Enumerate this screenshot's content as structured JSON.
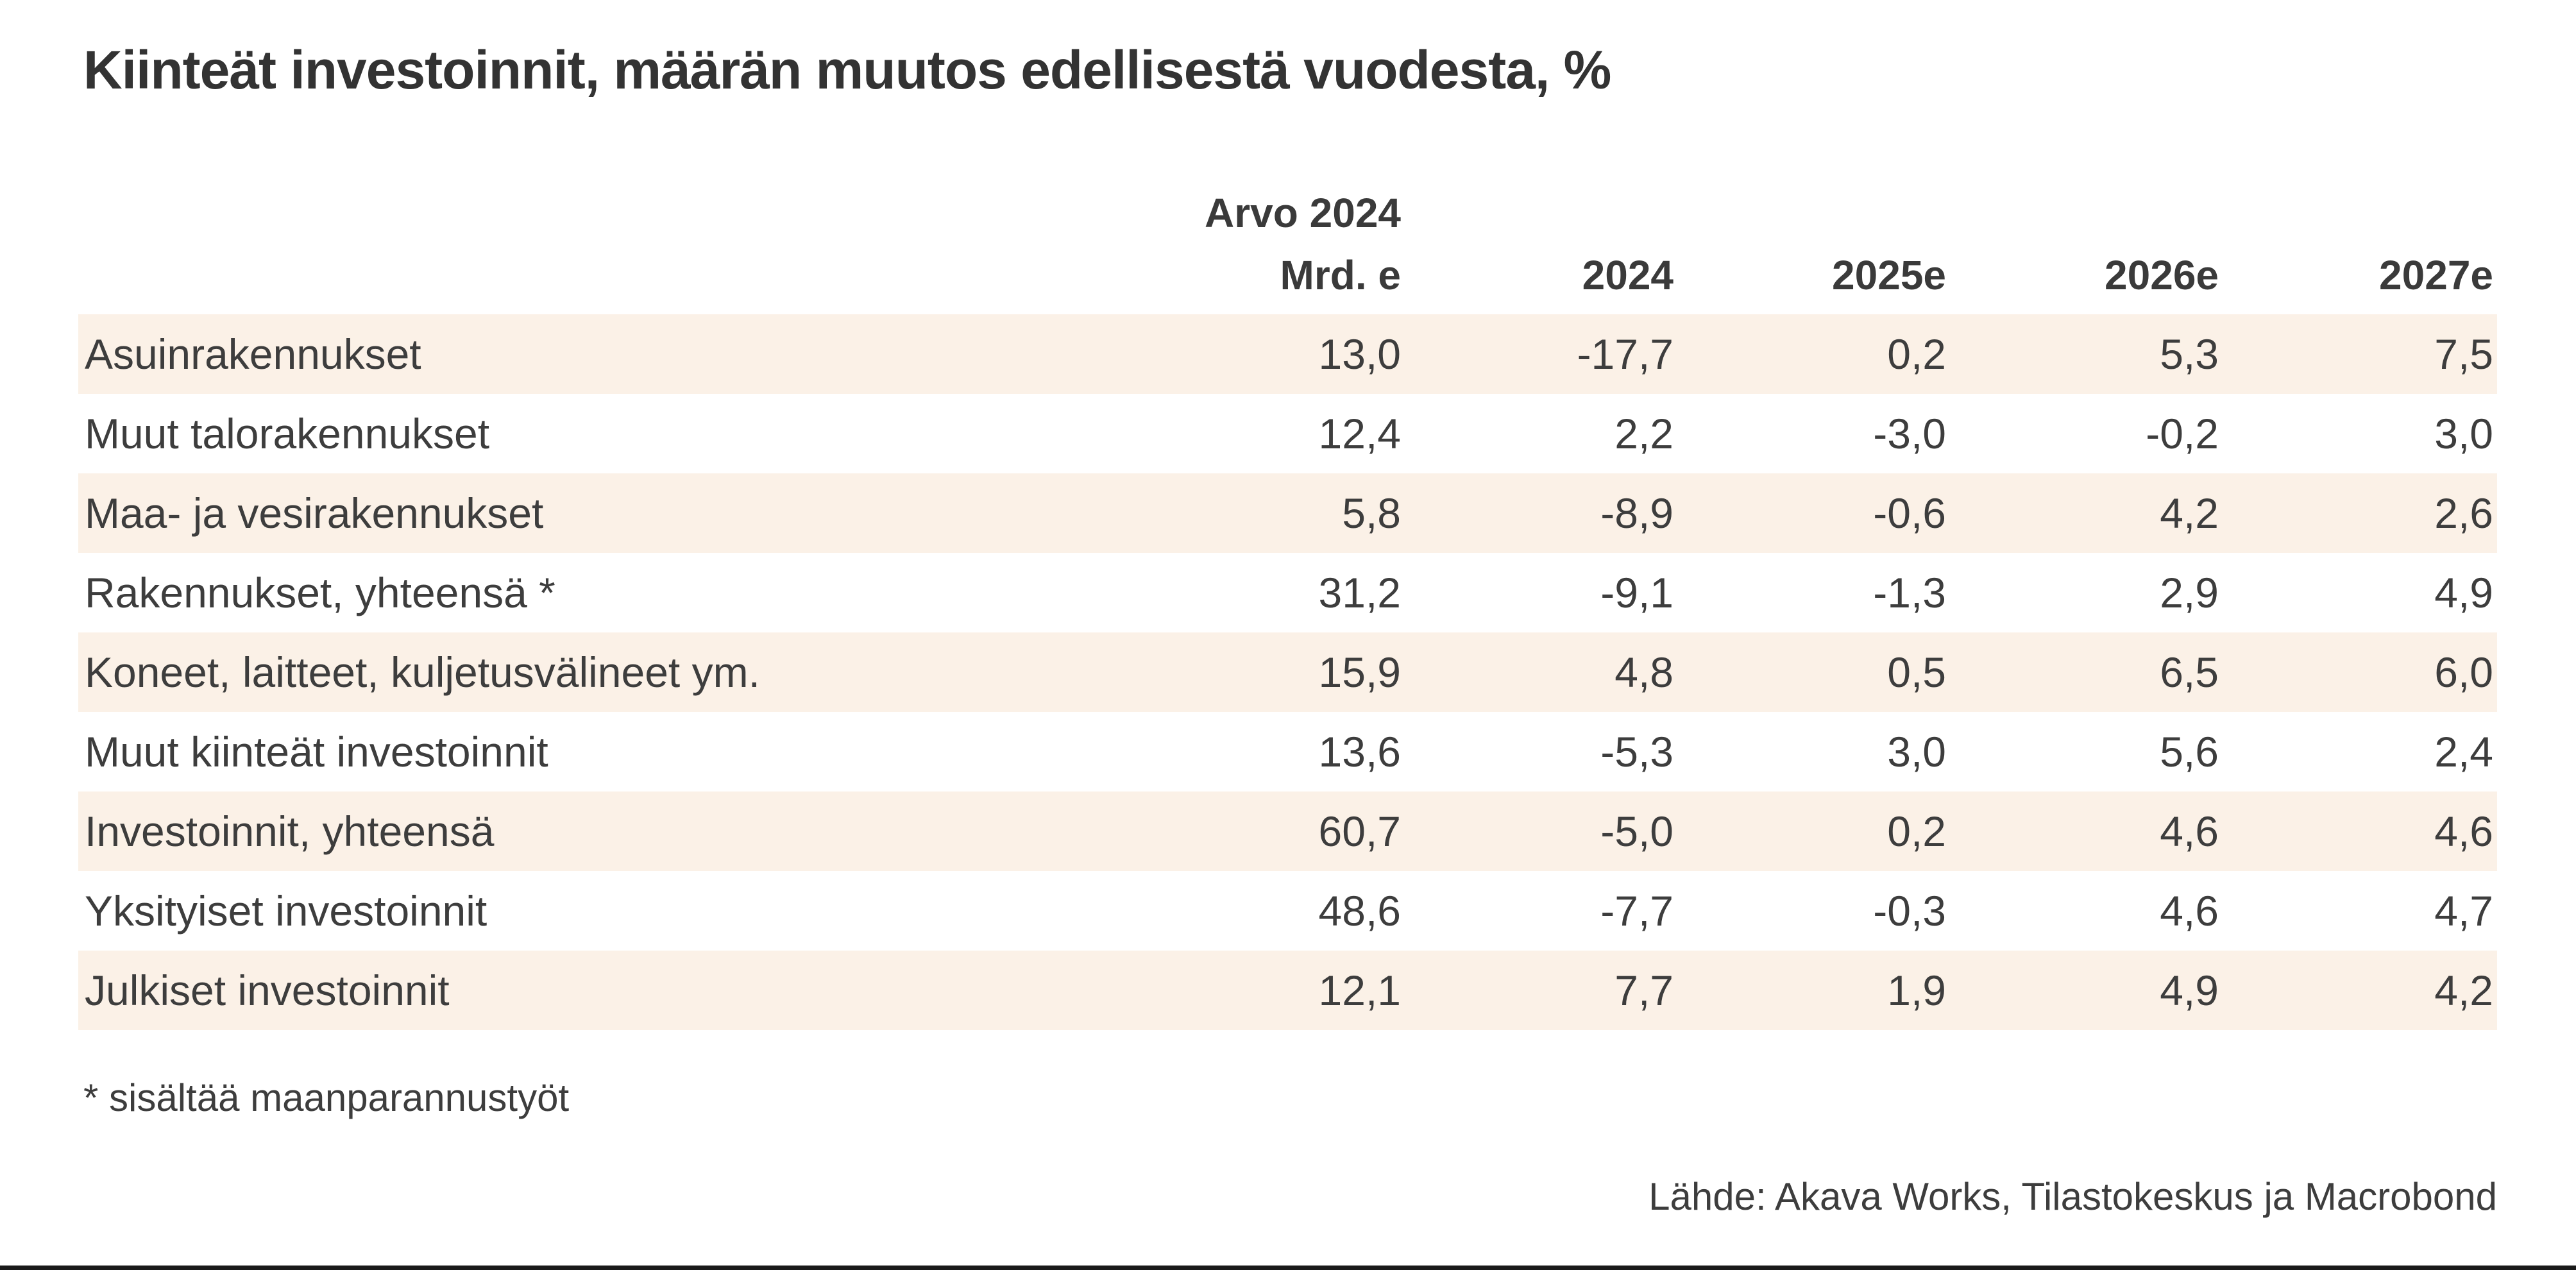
{
  "title": "Kiinteät investoinnit, määrän muutos edellisestä vuodesta, %",
  "table": {
    "header": {
      "value_col_line1": "Arvo 2024",
      "value_col_line2": "Mrd. e",
      "year_cols": [
        "2024",
        "2025e",
        "2026e",
        "2027e"
      ]
    },
    "rows": [
      {
        "label": "Asuinrakennukset",
        "values": [
          "13,0",
          "-17,7",
          "0,2",
          "5,3",
          "7,5"
        ]
      },
      {
        "label": "Muut talorakennukset",
        "values": [
          "12,4",
          "2,2",
          "-3,0",
          "-0,2",
          "3,0"
        ]
      },
      {
        "label": "Maa- ja vesirakennukset",
        "values": [
          "5,8",
          "-8,9",
          "-0,6",
          "4,2",
          "2,6"
        ]
      },
      {
        "label": "Rakennukset, yhteensä *",
        "values": [
          "31,2",
          "-9,1",
          "-1,3",
          "2,9",
          "4,9"
        ]
      },
      {
        "label": "Koneet, laitteet, kuljetusvälineet ym.",
        "values": [
          "15,9",
          "4,8",
          "0,5",
          "6,5",
          "6,0"
        ]
      },
      {
        "label": "Muut kiinteät investoinnit",
        "values": [
          "13,6",
          "-5,3",
          "3,0",
          "5,6",
          "2,4"
        ]
      },
      {
        "label": "Investoinnit, yhteensä",
        "values": [
          "60,7",
          "-5,0",
          "0,2",
          "4,6",
          "4,6"
        ]
      },
      {
        "label": "Yksityiset investoinnit",
        "values": [
          "48,6",
          "-7,7",
          "-0,3",
          "4,6",
          "4,7"
        ]
      },
      {
        "label": "Julkiset investoinnit",
        "values": [
          "12,1",
          "7,7",
          "1,9",
          "4,9",
          "4,2"
        ]
      }
    ]
  },
  "footnote": "* sisältää maanparannustyöt",
  "source": "Lähde: Akava Works, Tilastokeskus ja Macrobond",
  "colors": {
    "row_stripe": "#fbf1e7",
    "text": "#3d3d3d",
    "bottom_bar": "#1a1a1a"
  },
  "chart_data": {
    "type": "table",
    "title": "Kiinteät investoinnit, määrän muutos edellisestä vuodesta, %",
    "columns": [
      "",
      "Arvo 2024 Mrd. e",
      "2024",
      "2025e",
      "2026e",
      "2027e"
    ],
    "rows": [
      [
        "Asuinrakennukset",
        13.0,
        -17.7,
        0.2,
        5.3,
        7.5
      ],
      [
        "Muut talorakennukset",
        12.4,
        2.2,
        -3.0,
        -0.2,
        3.0
      ],
      [
        "Maa- ja vesirakennukset",
        5.8,
        -8.9,
        -0.6,
        4.2,
        2.6
      ],
      [
        "Rakennukset, yhteensä *",
        31.2,
        -9.1,
        -1.3,
        2.9,
        4.9
      ],
      [
        "Koneet, laitteet, kuljetusvälineet ym.",
        15.9,
        4.8,
        0.5,
        6.5,
        6.0
      ],
      [
        "Muut kiinteät investoinnit",
        13.6,
        -5.3,
        3.0,
        5.6,
        2.4
      ],
      [
        "Investoinnit, yhteensä",
        60.7,
        -5.0,
        0.2,
        4.6,
        4.6
      ],
      [
        "Yksityiset investoinnit",
        48.6,
        -7.7,
        -0.3,
        4.6,
        4.7
      ],
      [
        "Julkiset investoinnit",
        12.1,
        7.7,
        1.9,
        4.9,
        4.2
      ]
    ],
    "units": "%, volume change from previous year; first column EUR billions",
    "footnote": "* sisältää maanparannustyöt",
    "source": "Lähde: Akava Works, Tilastokeskus ja Macrobond",
    "striped_row_indices": [
      0,
      2,
      4,
      6,
      8
    ]
  }
}
